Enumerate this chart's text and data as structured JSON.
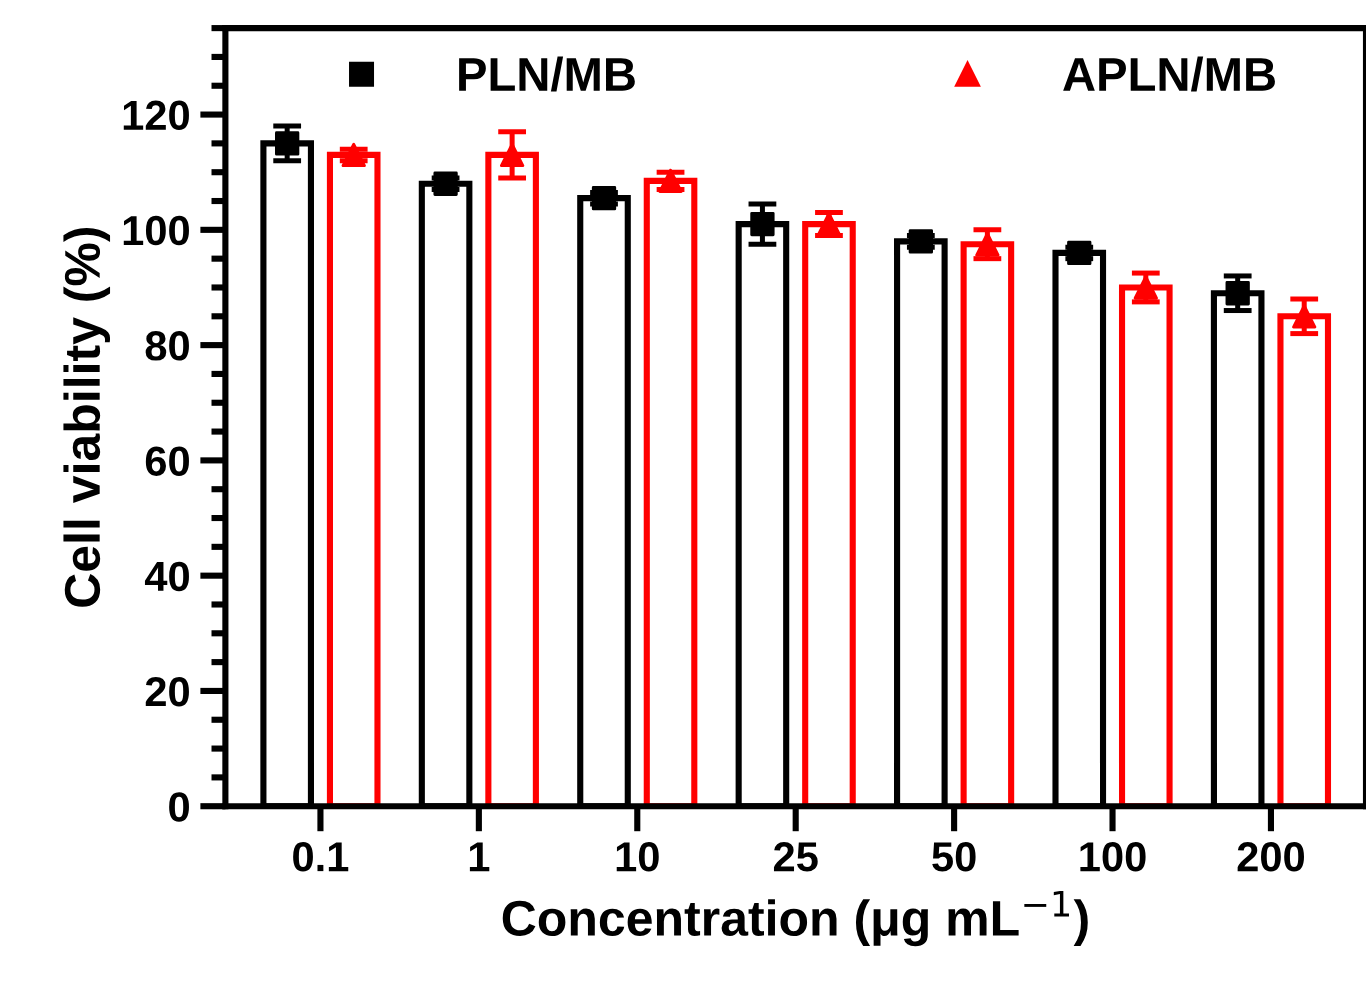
{
  "chart_data": {
    "type": "bar",
    "xlabel": "Concentration (μg mL$^{−1}$)",
    "ylabel": "Cell viability (%)",
    "categories": [
      "0.1",
      "1",
      "10",
      "25",
      "50",
      "100",
      "200"
    ],
    "series": [
      {
        "color": "#000000",
        "values": [
          115,
          108,
          105.5,
          101,
          98,
          96,
          89
        ]
      },
      {
        "color": "#ff0000",
        "values": [
          113,
          113,
          108.5,
          101,
          97.5,
          90,
          85
        ]
      },
      {
        "type": "scatter",
        "name": "PLN/MB",
        "color": "#000000",
        "marker": "square",
        "x": [
          "0.1",
          "1",
          "10",
          "25",
          "50",
          "100",
          "200"
        ],
        "values": [
          115,
          108,
          105.5,
          101,
          98,
          96,
          89
        ],
        "errors": [
          3,
          1,
          1,
          3.5,
          1,
          1,
          3
        ]
      },
      {
        "type": "scatter",
        "name": "APLN/MB",
        "color": "#ff0000",
        "marker": "triangle",
        "x": [
          "0.1",
          "1",
          "10",
          "25",
          "50",
          "100",
          "200"
        ],
        "values": [
          113,
          113,
          108.5,
          101,
          97.5,
          90,
          85
        ],
        "errors": [
          1,
          4,
          1.5,
          2,
          2.5,
          2.5,
          3
        ]
      }
    ],
    "ylim": [
      0,
      135
    ],
    "yticks": [
      0,
      {
        "value": 5,
        "label": null
      },
      {
        "value": 10,
        "label": null
      },
      {
        "value": 15,
        "label": null
      },
      20,
      {
        "value": 25,
        "label": null
      },
      {
        "value": 30,
        "label": null
      },
      {
        "value": 35,
        "label": null
      },
      40,
      {
        "value": 45,
        "label": null
      },
      {
        "value": 50,
        "label": null
      },
      {
        "value": 55,
        "label": null
      },
      60,
      {
        "value": 65,
        "label": null
      },
      {
        "value": 70,
        "label": null
      },
      {
        "value": 75,
        "label": null
      },
      80,
      {
        "value": 85,
        "label": null
      },
      {
        "value": 90,
        "label": null
      },
      {
        "value": 95,
        "label": null
      },
      100,
      {
        "value": 105,
        "label": null
      },
      {
        "value": 110,
        "label": null
      },
      {
        "value": 115,
        "label": null
      },
      120,
      {
        "value": 125,
        "label": null
      },
      {
        "value": 130,
        "label": null
      },
      {
        "value": 135,
        "label": null
      }
    ],
    "grid": false,
    "legend": "top"
  }
}
